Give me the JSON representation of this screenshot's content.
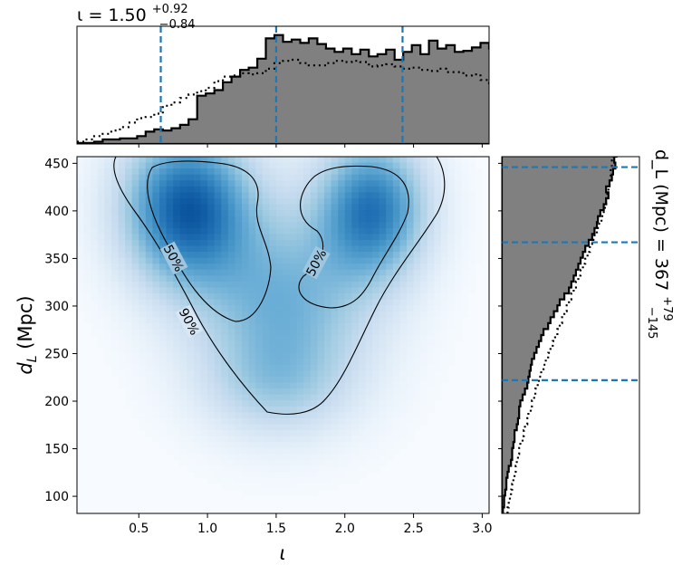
{
  "chart_data": [
    {
      "panel": "top-marginal",
      "type": "histogram",
      "title": "ι = 1.50",
      "title_main": "ι = 1.50",
      "title_sup": "+0.92",
      "title_sub": "−0.84",
      "xlim": [
        0.05,
        3.05
      ],
      "quantile_lines": [
        0.66,
        1.5,
        2.42
      ],
      "bin_edges_start": 0.05,
      "bin_width": 0.0625,
      "posterior": [
        1,
        1,
        2,
        4,
        4,
        5,
        5,
        7,
        11,
        13,
        12,
        14,
        17,
        22,
        43,
        45,
        48,
        55,
        60,
        66,
        68,
        76,
        94,
        97,
        91,
        93,
        90,
        94,
        89,
        85,
        82,
        85,
        80,
        84,
        78,
        80,
        84,
        75,
        82,
        88,
        80,
        92,
        85,
        88,
        82,
        83,
        86,
        90,
        85,
        83,
        70,
        68,
        62,
        55,
        42,
        38,
        24,
        21,
        14,
        11,
        8,
        5,
        1,
        0
      ],
      "prior": [
        2,
        4,
        7,
        9,
        12,
        15,
        19,
        23,
        24,
        27,
        34,
        37,
        41,
        44,
        47,
        50,
        56,
        60,
        61,
        63,
        62,
        63,
        67,
        72,
        74,
        75,
        72,
        70,
        70,
        72,
        74,
        73,
        74,
        73,
        69,
        70,
        71,
        69,
        67,
        68,
        66,
        65,
        67,
        64,
        64,
        61,
        62,
        57,
        52,
        51,
        48,
        45,
        41,
        39,
        35,
        33,
        29,
        25,
        20,
        16,
        12,
        8,
        5,
        3
      ]
    },
    {
      "panel": "joint",
      "type": "heatmap",
      "xlabel": "ι",
      "ylabel": "d_L (Mpc)",
      "xlim": [
        0.05,
        3.05
      ],
      "ylim": [
        82,
        457
      ],
      "xticks": [
        0.5,
        1.0,
        1.5,
        2.0,
        2.5,
        3.0
      ],
      "xtick_labels": [
        "0.5",
        "1.0",
        "1.5",
        "2.0",
        "2.5",
        "3.0"
      ],
      "yticks": [
        100,
        150,
        200,
        250,
        300,
        350,
        400,
        450
      ],
      "ytick_labels": [
        "100",
        "150",
        "200",
        "250",
        "300",
        "350",
        "400",
        "450"
      ],
      "contour_labels": [
        "50%",
        "50%",
        "90%"
      ],
      "peaks": [
        {
          "x": 0.85,
          "y": 403,
          "weight": 1.0
        },
        {
          "x": 2.2,
          "y": 402,
          "weight": 0.85
        }
      ]
    },
    {
      "panel": "right-marginal",
      "type": "histogram",
      "title": "d_L (Mpc) = 367",
      "title_main": "d_L (Mpc) = 367",
      "title_sup": "+79",
      "title_sub": "−145",
      "ylim": [
        82,
        457
      ],
      "quantile_lines": [
        222,
        367,
        446
      ],
      "bin_edges_start": 82,
      "bin_width": 6.25,
      "posterior": [
        1,
        2,
        2,
        3,
        4,
        4,
        5,
        6,
        8,
        9,
        9,
        10,
        11,
        11,
        13,
        14,
        15,
        15,
        16,
        18,
        20,
        22,
        23,
        24,
        25,
        26,
        28,
        30,
        32,
        34,
        36,
        40,
        42,
        45,
        48,
        50,
        54,
        58,
        60,
        62,
        64,
        66,
        68,
        70,
        72,
        75,
        78,
        80,
        82,
        83,
        85,
        88,
        90,
        92,
        90,
        93,
        95,
        96,
        98,
        97,
        99,
        100
      ],
      "prior": [
        5,
        6,
        7,
        8,
        9,
        10,
        11,
        12,
        13,
        14,
        15,
        16,
        18,
        19,
        20,
        22,
        23,
        25,
        26,
        28,
        29,
        31,
        32,
        34,
        36,
        38,
        40,
        42,
        44,
        46,
        48,
        50,
        52,
        54,
        56,
        58,
        60,
        62,
        64,
        66,
        68,
        70,
        72,
        74,
        76,
        78,
        80,
        82,
        84,
        86,
        88,
        89,
        90,
        91,
        92,
        93,
        94,
        94,
        95,
        95,
        96,
        96
      ]
    }
  ]
}
